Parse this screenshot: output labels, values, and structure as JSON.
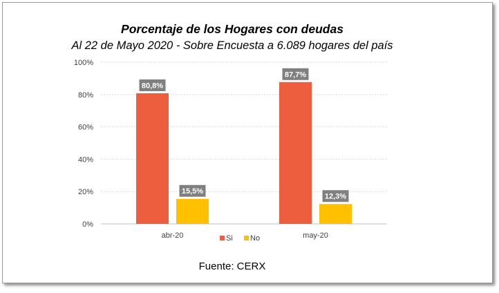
{
  "chart_data": {
    "type": "bar",
    "title": "Porcentaje de los Hogares con deudas",
    "subtitle": "Al 22 de Mayo 2020 - Sobre Encuesta a 6.089 hogares del país",
    "categories": [
      "abr-20",
      "may-20"
    ],
    "series": [
      {
        "name": "Si",
        "color": "#ed5e3e",
        "values": [
          80.8,
          87.7
        ],
        "labels": [
          "80,8%",
          "87,7%"
        ]
      },
      {
        "name": "No",
        "color": "#ffc000",
        "values": [
          15.5,
          12.3
        ],
        "labels": [
          "15,5%",
          "12,3%"
        ]
      }
    ],
    "ylim": [
      0,
      100
    ],
    "yticks": [
      {
        "value": 0,
        "label": "0%"
      },
      {
        "value": 20,
        "label": "20%"
      },
      {
        "value": 40,
        "label": "40%"
      },
      {
        "value": 60,
        "label": "60%"
      },
      {
        "value": 80,
        "label": "80%"
      },
      {
        "value": 100,
        "label": "100%"
      }
    ],
    "grid": true,
    "legend_position": "bottom",
    "data_label_bg": "#7f7f7f",
    "source": "Fuente: CERX"
  }
}
